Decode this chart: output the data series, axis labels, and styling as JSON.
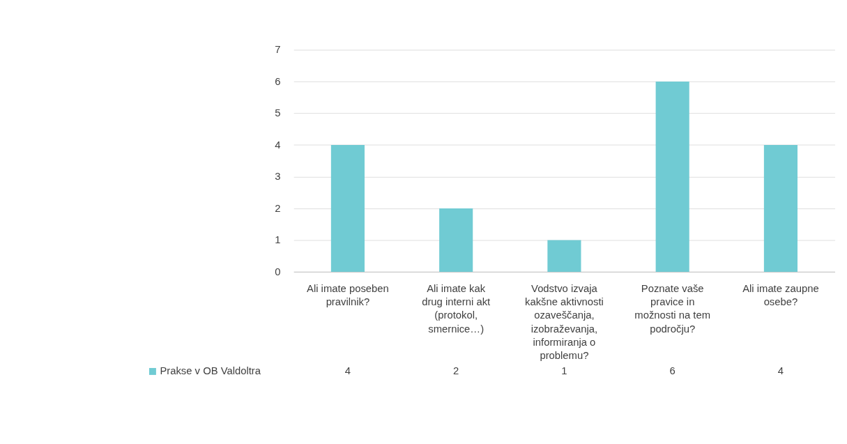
{
  "chart_data": {
    "type": "bar",
    "categories": [
      "Ali imate poseben pravilnik?",
      "Ali imate kak drug interni akt (protokol, smernice…)",
      "Vodstvo izvaja kakšne aktivnosti ozaveščanja, izobraževanja, informiranja o problemu?",
      "Poznate vaše pravice in možnosti na tem področju?",
      "Ali imate zaupne osebe?"
    ],
    "series": [
      {
        "name": "Prakse v OB Valdoltra",
        "color": "#70cbd3",
        "values": [
          4,
          2,
          1,
          6,
          4
        ]
      }
    ],
    "ylim": [
      0,
      7
    ],
    "yticks": [
      0,
      1,
      2,
      3,
      4,
      5,
      6,
      7
    ],
    "grid": "y",
    "data_labels": true,
    "legend": "bottom"
  }
}
